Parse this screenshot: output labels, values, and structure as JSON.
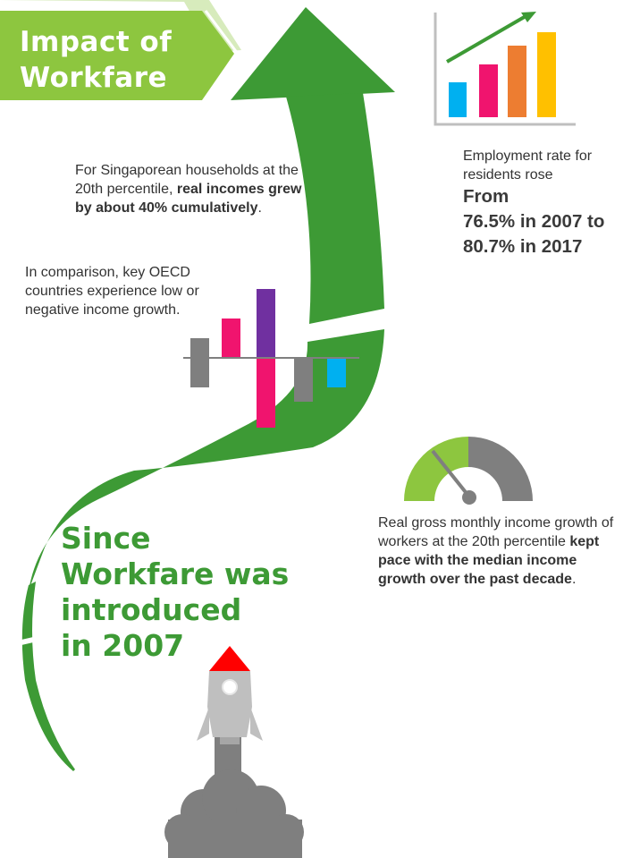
{
  "banner": {
    "line1": "Impact of",
    "line2": "Workfare",
    "color": "#8dc63f"
  },
  "income_note": {
    "part1": "For Singaporean households at the 20th percentile, ",
    "bold": "real incomes grew by about 40% cumulatively",
    "part2": "."
  },
  "oecd_note": "In comparison, key OECD countries experience low or negative income growth.",
  "employment": {
    "line1": "Employment rate for",
    "line2": "residents rose",
    "big1": "From",
    "big2": "76.5% in 2007 to",
    "big3": "80.7% in 2017"
  },
  "gauge_note": {
    "part1": "Real gross monthly income growth of workers at the 20th percentile ",
    "bold": "kept pace with the median income growth over the past decade",
    "part2": "."
  },
  "since": {
    "line1": "Since",
    "line2": "Workfare was",
    "line3": "introduced",
    "line4": "in 2007"
  },
  "icons": {
    "bar_growth": "bar-chart-growth-icon",
    "oecd_bars": "bar-chart-mixed-icon",
    "gauge": "gauge-icon",
    "rocket": "rocket-icon",
    "arrow": "arrow-up-icon"
  },
  "colors": {
    "green_arrow": "#3d9a35",
    "light_green": "#8dc63f",
    "gray": "#7f7f7f",
    "pink": "#f0146e",
    "purple": "#7030a0",
    "blue": "#00b0f0",
    "orange": "#ed7d31",
    "yellow": "#ffc000",
    "red": "#ff0000"
  }
}
